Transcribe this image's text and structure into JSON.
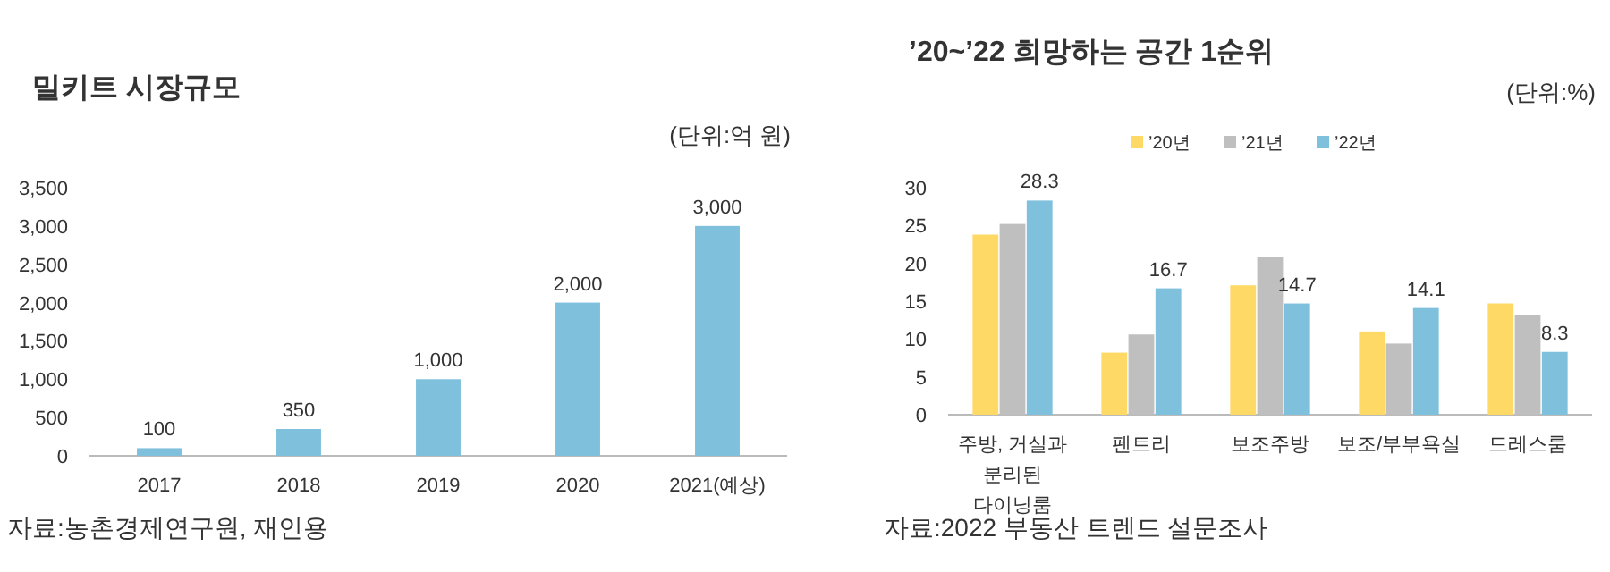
{
  "chart_data": [
    {
      "type": "bar",
      "title": "밀키트 시장규모",
      "categories": [
        "2017",
        "2018",
        "2019",
        "2020",
        "2021(예상)"
      ],
      "values": [
        100,
        350,
        1000,
        2000,
        3000
      ],
      "color": "#7fc1dc",
      "value_labels": [
        "100",
        "350",
        "1,000",
        "2,000",
        "3,000"
      ],
      "ylim": [
        0,
        3500
      ],
      "yticks": [
        0,
        {
          "value": 500,
          "label": "500"
        },
        {
          "value": 1000,
          "label": "1,000"
        },
        {
          "value": 1500,
          "label": "1,500"
        },
        {
          "value": 2000,
          "label": "2,000"
        },
        {
          "value": 2500,
          "label": "2,500"
        },
        {
          "value": 3000,
          "label": "3,000"
        },
        {
          "value": 3500,
          "label": "3,500"
        }
      ],
      "grid": false,
      "legend": false,
      "annotations": [
        "(단위:억 원)",
        "자료:농촌경제연구원, 재인용"
      ]
    },
    {
      "type": "bar",
      "title": "’20~’22 희망하는 공간 1순위",
      "categories": [
        "주방, 거실과 분리된 다이닝룸",
        "펜트리",
        "보조주방",
        "보조/부부욕실",
        "드레스룸"
      ],
      "series": [
        {
          "name": "’20년",
          "color": "#ffd966",
          "values": [
            23.8,
            8.2,
            17.1,
            11.0,
            14.7
          ]
        },
        {
          "name": "’21년",
          "color": "#bfbfbf",
          "values": [
            25.2,
            10.6,
            20.9,
            9.4,
            13.2
          ]
        },
        {
          "name": "’22년",
          "color": "#7fc1dc",
          "values": [
            28.3,
            16.7,
            14.7,
            14.1,
            8.3
          ],
          "value_labels": [
            "28.3",
            "16.7",
            "14.7",
            "14.1",
            "8.3"
          ]
        }
      ],
      "ylim": [
        0,
        30
      ],
      "yticks": [
        0,
        5,
        10,
        15,
        20,
        25,
        30
      ],
      "grid": false,
      "legend": "top",
      "annotations": [
        "(단위:%)",
        "자료:2022 부동산 트렌드 설문조사"
      ]
    }
  ]
}
